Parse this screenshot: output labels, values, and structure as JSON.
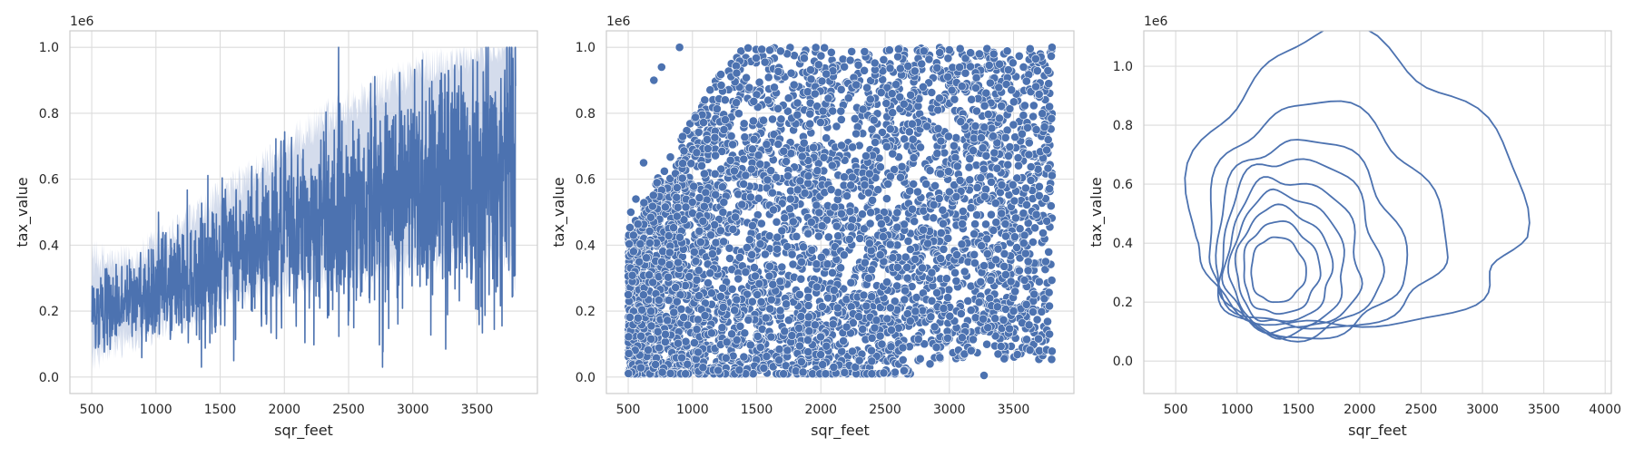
{
  "chart_data": [
    {
      "type": "line",
      "xlabel": "sqr_feet",
      "ylabel": "tax_value",
      "y_offset_label": "1e6",
      "xlim": [
        330,
        3970
      ],
      "ylim": [
        -0.05,
        1.05
      ],
      "xticks": [
        500,
        1000,
        1500,
        2000,
        2500,
        3000,
        3500
      ],
      "yticks": [
        0.0,
        0.2,
        0.4,
        0.6,
        0.8,
        1.0
      ],
      "xtick_labels": [
        "500",
        "1000",
        "1500",
        "2000",
        "2500",
        "3000",
        "3500"
      ],
      "ytick_labels": [
        "0.0",
        "0.2",
        "0.4",
        "0.6",
        "0.8",
        "1.0"
      ],
      "grid": true,
      "color": "#4c72b0",
      "ci_color": "#c5d0e5",
      "series": [
        {
          "x": [
            500,
            600,
            700,
            800,
            900,
            1000,
            1100,
            1200,
            1300,
            1400,
            1500,
            1600,
            1700,
            1800,
            1900,
            2000,
            2100,
            2200,
            2300,
            2400,
            2500,
            2600,
            2700,
            2800,
            2900,
            3000,
            3100,
            3200,
            3300,
            3400,
            3500,
            3600,
            3700,
            3800
          ],
          "y": [
            0.2,
            0.21,
            0.22,
            0.23,
            0.25,
            0.27,
            0.28,
            0.3,
            0.31,
            0.33,
            0.35,
            0.37,
            0.38,
            0.4,
            0.42,
            0.43,
            0.44,
            0.46,
            0.48,
            0.49,
            0.5,
            0.52,
            0.53,
            0.55,
            0.56,
            0.57,
            0.58,
            0.6,
            0.61,
            0.62,
            0.63,
            0.64,
            0.65,
            0.72
          ],
          "band_low": [
            0.06,
            0.08,
            0.1,
            0.12,
            0.13,
            0.15,
            0.17,
            0.18,
            0.19,
            0.2,
            0.22,
            0.24,
            0.25,
            0.26,
            0.27,
            0.28,
            0.29,
            0.3,
            0.31,
            0.32,
            0.32,
            0.33,
            0.33,
            0.34,
            0.34,
            0.35,
            0.35,
            0.36,
            0.36,
            0.37,
            0.37,
            0.38,
            0.38,
            0.3
          ],
          "band_high": [
            0.36,
            0.35,
            0.34,
            0.35,
            0.37,
            0.4,
            0.42,
            0.45,
            0.48,
            0.51,
            0.54,
            0.57,
            0.6,
            0.63,
            0.66,
            0.69,
            0.72,
            0.75,
            0.78,
            0.8,
            0.82,
            0.84,
            0.86,
            0.88,
            0.9,
            0.92,
            0.94,
            0.95,
            0.96,
            0.97,
            0.98,
            0.99,
            1.0,
            1.0
          ]
        }
      ]
    },
    {
      "type": "scatter",
      "xlabel": "sqr_feet",
      "ylabel": "tax_value",
      "y_offset_label": "1e6",
      "xlim": [
        330,
        3970
      ],
      "ylim": [
        -0.05,
        1.05
      ],
      "xticks": [
        500,
        1000,
        1500,
        2000,
        2500,
        3000,
        3500
      ],
      "yticks": [
        0.0,
        0.2,
        0.4,
        0.6,
        0.8,
        1.0
      ],
      "xtick_labels": [
        "500",
        "1000",
        "1500",
        "2000",
        "2500",
        "3000",
        "3500"
      ],
      "ytick_labels": [
        "0.0",
        "0.2",
        "0.4",
        "0.6",
        "0.8",
        "1.0"
      ],
      "grid": true,
      "color": "#4c72b0",
      "x_range": [
        500,
        3800
      ],
      "y_range": [
        0.0,
        1.0
      ],
      "sample_points": [
        [
          3270,
          0.005
        ],
        [
          3380,
          0.07
        ],
        [
          3780,
          0.13
        ],
        [
          2850,
          0.04
        ],
        [
          900,
          1.0
        ],
        [
          3800,
          1.0
        ],
        [
          3780,
          0.82
        ],
        [
          3770,
          0.72
        ],
        [
          3700,
          0.55
        ],
        [
          3750,
          0.35
        ],
        [
          3600,
          0.22
        ],
        [
          3500,
          0.2
        ],
        [
          3300,
          0.15
        ],
        [
          3100,
          0.12
        ],
        [
          2900,
          0.09
        ],
        [
          620,
          0.65
        ],
        [
          560,
          0.54
        ],
        [
          520,
          0.5
        ],
        [
          700,
          0.9
        ],
        [
          760,
          0.94
        ],
        [
          1200,
          0.02
        ],
        [
          2100,
          0.03
        ],
        [
          2300,
          0.05
        ],
        [
          3350,
          0.68
        ],
        [
          3550,
          0.45
        ]
      ]
    },
    {
      "type": "contour",
      "xlabel": "sqr_feet",
      "ylabel": "tax_value",
      "y_offset_label": "1e6",
      "xlim": [
        240,
        4050
      ],
      "ylim": [
        -0.11,
        1.12
      ],
      "xticks": [
        500,
        1000,
        1500,
        2000,
        2500,
        3000,
        3500,
        4000
      ],
      "yticks": [
        0.0,
        0.2,
        0.4,
        0.6,
        0.8,
        1.0
      ],
      "xtick_labels": [
        "500",
        "1000",
        "1500",
        "2000",
        "2500",
        "3000",
        "3500",
        "4000"
      ],
      "ytick_labels": [
        "0.0",
        "0.2",
        "0.4",
        "0.6",
        "0.8",
        "1.0"
      ],
      "grid": true,
      "color": "#4c72b0",
      "levels": 10,
      "density_peak": [
        1300,
        0.3
      ]
    }
  ]
}
